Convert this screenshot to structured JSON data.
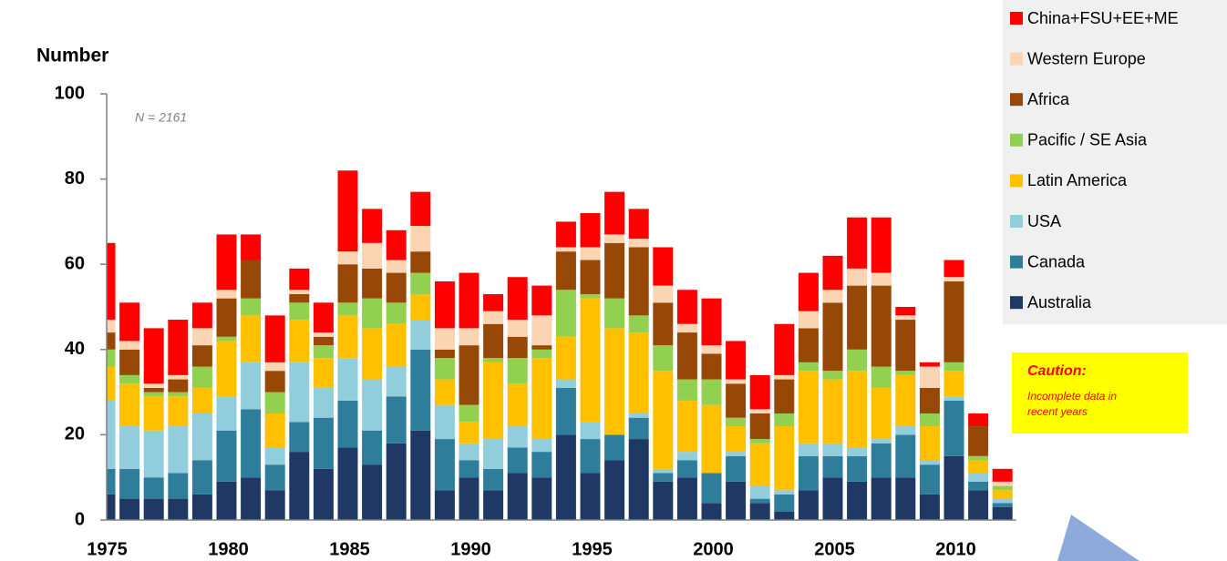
{
  "chart_data": {
    "type": "stacked_bar",
    "y_label": "Number",
    "annotations": [
      "N = 2161"
    ],
    "caution_title": "Caution:",
    "caution_lines": [
      "Incomplete data in",
      "recent years"
    ],
    "categories": [
      "1975",
      null,
      null,
      null,
      null,
      "1980",
      null,
      null,
      null,
      null,
      "1985",
      null,
      null,
      null,
      null,
      "1990",
      null,
      null,
      null,
      null,
      "1995",
      null,
      null,
      null,
      null,
      "2000",
      null,
      null,
      null,
      null,
      "2005",
      null,
      null,
      null,
      null,
      "2010",
      null,
      null
    ],
    "ylim": [
      0,
      100
    ],
    "yticks": [
      0,
      20,
      40,
      60,
      80,
      100
    ],
    "grid": false,
    "legend_position": "upper right",
    "series": [
      {
        "name": "Australia",
        "color": "#203864",
        "values": [
          6,
          5,
          5,
          5,
          6,
          9,
          10,
          7,
          16,
          12,
          17,
          13,
          18,
          21,
          7,
          10,
          7,
          11,
          10,
          20,
          11,
          14,
          19,
          9,
          10,
          4,
          9,
          4,
          2,
          7,
          10,
          9,
          10,
          10,
          6,
          15,
          7,
          3
        ]
      },
      {
        "name": "Canada",
        "color": "#2e7e9b",
        "values": [
          6,
          7,
          5,
          6,
          8,
          12,
          16,
          6,
          7,
          12,
          11,
          8,
          11,
          19,
          12,
          4,
          5,
          6,
          6,
          11,
          8,
          6,
          5,
          2,
          4,
          7,
          6,
          1,
          4,
          8,
          5,
          6,
          8,
          10,
          7,
          13,
          2,
          1
        ]
      },
      {
        "name": "USA",
        "color": "#92cddc",
        "values": [
          16,
          10,
          11,
          11,
          11,
          8,
          11,
          4,
          14,
          7,
          10,
          12,
          7,
          7,
          8,
          4,
          7,
          5,
          3,
          2,
          4,
          0,
          1,
          1,
          2,
          0,
          1,
          3,
          1,
          3,
          3,
          2,
          1,
          2,
          1,
          1,
          2,
          1
        ]
      },
      {
        "name": "Latin America",
        "color": "#ffc000",
        "values": [
          8,
          10,
          8,
          7,
          6,
          13,
          11,
          8,
          10,
          7,
          10,
          12,
          10,
          6,
          6,
          5,
          18,
          10,
          19,
          10,
          29,
          25,
          19,
          23,
          12,
          16,
          6,
          10,
          15,
          17,
          15,
          18,
          12,
          12,
          8,
          6,
          3,
          2
        ]
      },
      {
        "name": "Pacific / SE Asia",
        "color": "#92d050",
        "values": [
          4,
          2,
          1,
          1,
          5,
          1,
          4,
          5,
          4,
          3,
          3,
          7,
          5,
          5,
          5,
          4,
          1,
          6,
          2,
          11,
          1,
          7,
          4,
          6,
          5,
          6,
          2,
          1,
          3,
          2,
          2,
          5,
          5,
          1,
          3,
          2,
          1,
          1
        ]
      },
      {
        "name": "Africa",
        "color": "#974806",
        "values": [
          4,
          6,
          1,
          3,
          5,
          9,
          9,
          5,
          2,
          2,
          9,
          7,
          7,
          5,
          2,
          14,
          8,
          5,
          1,
          9,
          8,
          13,
          16,
          10,
          11,
          6,
          8,
          6,
          8,
          8,
          16,
          15,
          19,
          12,
          6,
          19,
          7,
          0
        ]
      },
      {
        "name": "Western Europe",
        "color": "#fbd4b4",
        "values": [
          3,
          2,
          1,
          1,
          4,
          2,
          0,
          2,
          1,
          1,
          3,
          6,
          3,
          6,
          5,
          4,
          3,
          4,
          7,
          1,
          3,
          2,
          2,
          4,
          2,
          2,
          1,
          1,
          1,
          4,
          3,
          4,
          3,
          1,
          5,
          1,
          0,
          1
        ]
      },
      {
        "name": "China+FSU+EE+ME",
        "color": "#ff0000",
        "values": [
          18,
          9,
          13,
          13,
          6,
          13,
          6,
          11,
          5,
          7,
          19,
          8,
          7,
          8,
          11,
          13,
          4,
          10,
          7,
          6,
          8,
          10,
          7,
          9,
          8,
          11,
          9,
          8,
          12,
          9,
          8,
          12,
          13,
          2,
          1,
          4,
          3,
          3
        ]
      }
    ]
  }
}
